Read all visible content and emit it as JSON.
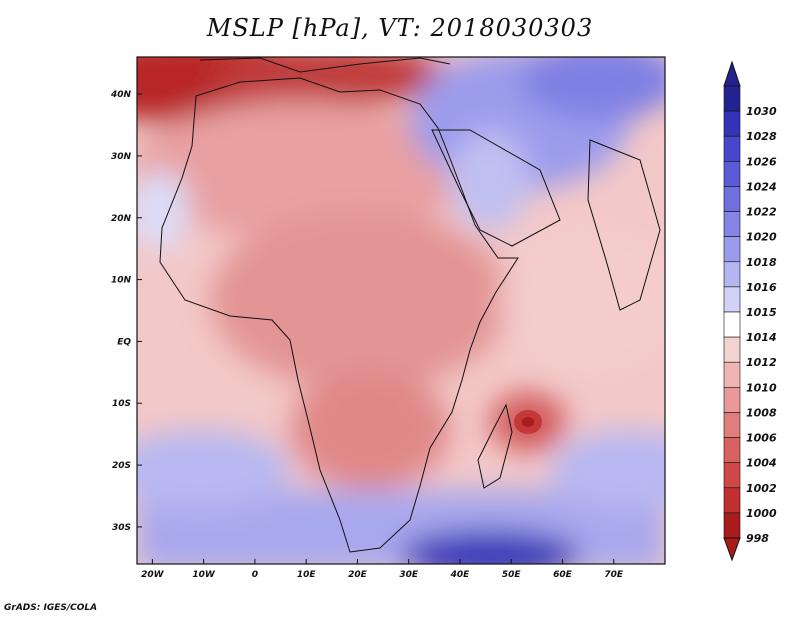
{
  "title": "MSLP [hPa], VT: 2018030303",
  "credit": "GrADS: IGES/COLA",
  "map": {
    "lon_range": [
      -23,
      80
    ],
    "lat_range": [
      -36,
      46
    ],
    "x_ticks": [
      "20W",
      "10W",
      "0",
      "10E",
      "20E",
      "30E",
      "40E",
      "50E",
      "60E",
      "70E"
    ],
    "x_tick_values": [
      -20,
      -10,
      0,
      10,
      20,
      30,
      40,
      50,
      60,
      70
    ],
    "y_ticks": [
      "40N",
      "30N",
      "20N",
      "10N",
      "EQ",
      "10S",
      "20S",
      "30S"
    ],
    "y_tick_values": [
      40,
      30,
      20,
      10,
      0,
      -10,
      -20,
      -30
    ]
  },
  "colorbar": {
    "levels": [
      "1030",
      "1028",
      "1026",
      "1024",
      "1022",
      "1020",
      "1018",
      "1016",
      "1015",
      "1014",
      "1012",
      "1010",
      "1008",
      "1006",
      "1004",
      "1002",
      "1000",
      "998"
    ],
    "colors": [
      "#23238f",
      "#3434b8",
      "#4747cc",
      "#5b5bd8",
      "#6f6fe0",
      "#8585e6",
      "#9b9bec",
      "#b5b5f2",
      "#d2d2f7",
      "#ffffff",
      "#f5d2d2",
      "#efb5b5",
      "#e89a9a",
      "#e07d7d",
      "#d86262",
      "#cf4747",
      "#c03030",
      "#a81c1c"
    ]
  }
}
